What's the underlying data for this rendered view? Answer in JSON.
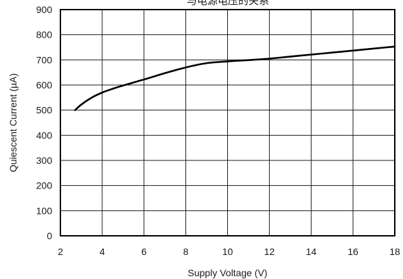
{
  "chart_data": {
    "type": "line",
    "title": "与电源电压的关系",
    "xlabel": "Supply Voltage (V)",
    "ylabel": "Quiescent Current (µA)",
    "xlim": [
      2,
      18
    ],
    "ylim": [
      0,
      900
    ],
    "x_ticks": [
      2,
      4,
      6,
      8,
      10,
      12,
      14,
      16,
      18
    ],
    "y_ticks": [
      0,
      100,
      200,
      300,
      400,
      500,
      600,
      700,
      800,
      900
    ],
    "grid": true,
    "legend": "none",
    "colors": {
      "line": "#000000",
      "grid": "#1a1a1a",
      "frame": "#000000"
    },
    "series": [
      {
        "x": [
          2.7,
          3.0,
          3.5,
          4.0,
          4.5,
          5.0,
          6.0,
          7.0,
          8.0,
          9.0,
          10.0,
          11.0,
          12.0,
          13.0,
          14.0,
          15.0,
          16.0,
          17.0,
          18.0
        ],
        "y": [
          500,
          522,
          550,
          570,
          585,
          598,
          622,
          647,
          670,
          687,
          694,
          699,
          705,
          713,
          721,
          729,
          737,
          745,
          753
        ]
      }
    ]
  }
}
